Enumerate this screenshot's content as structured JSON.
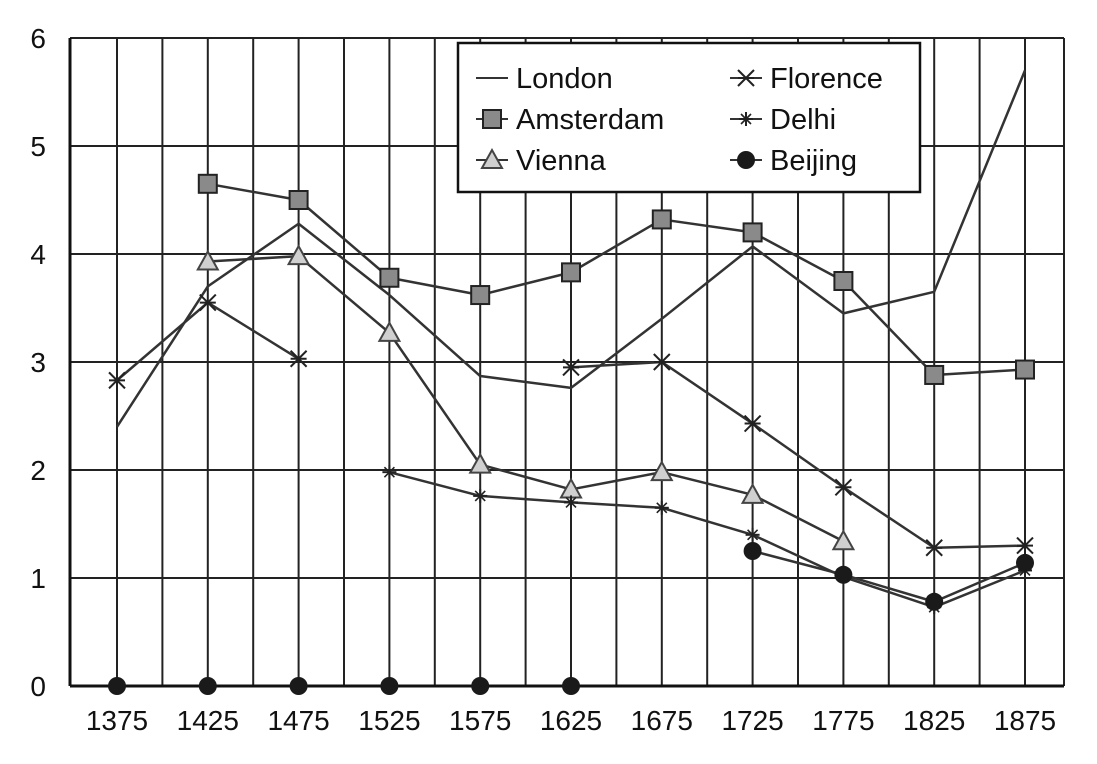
{
  "chart_data": {
    "type": "line",
    "x": [
      1375,
      1425,
      1475,
      1525,
      1575,
      1625,
      1675,
      1725,
      1775,
      1825,
      1875
    ],
    "xticks": [
      "1375",
      "1425",
      "1475",
      "1525",
      "1575",
      "1625",
      "1675",
      "1725",
      "1775",
      "1825",
      "1875"
    ],
    "yticks": [
      "0",
      "1",
      "2",
      "3",
      "4",
      "5",
      "6"
    ],
    "ylim": [
      0,
      6
    ],
    "grid": true,
    "legend_position": "top-right",
    "series": [
      {
        "name": "London",
        "marker": "none",
        "values": [
          2.4,
          3.7,
          4.28,
          3.62,
          2.87,
          2.76,
          3.4,
          4.07,
          3.45,
          3.65,
          5.7
        ]
      },
      {
        "name": "Amsterdam",
        "marker": "square",
        "values": [
          null,
          4.65,
          4.5,
          3.78,
          3.62,
          3.83,
          4.32,
          4.2,
          3.75,
          2.88,
          2.93
        ]
      },
      {
        "name": "Vienna",
        "marker": "triangle",
        "values": [
          null,
          3.93,
          3.98,
          3.27,
          2.05,
          1.82,
          1.98,
          1.77,
          1.34,
          null,
          null
        ]
      },
      {
        "name": "Florence",
        "marker": "x-star",
        "values": [
          2.83,
          3.55,
          3.03,
          null,
          null,
          2.95,
          3.0,
          2.43,
          1.84,
          1.28,
          1.3
        ]
      },
      {
        "name": "Delhi",
        "marker": "plus-star",
        "values": [
          null,
          null,
          null,
          1.98,
          1.76,
          1.7,
          1.65,
          1.4,
          1.01,
          0.73,
          1.07
        ]
      },
      {
        "name": "Beijing",
        "marker": "circle",
        "values": [
          0,
          0,
          0,
          0,
          0,
          0,
          null,
          1.25,
          1.03,
          0.78,
          1.14
        ]
      }
    ]
  }
}
